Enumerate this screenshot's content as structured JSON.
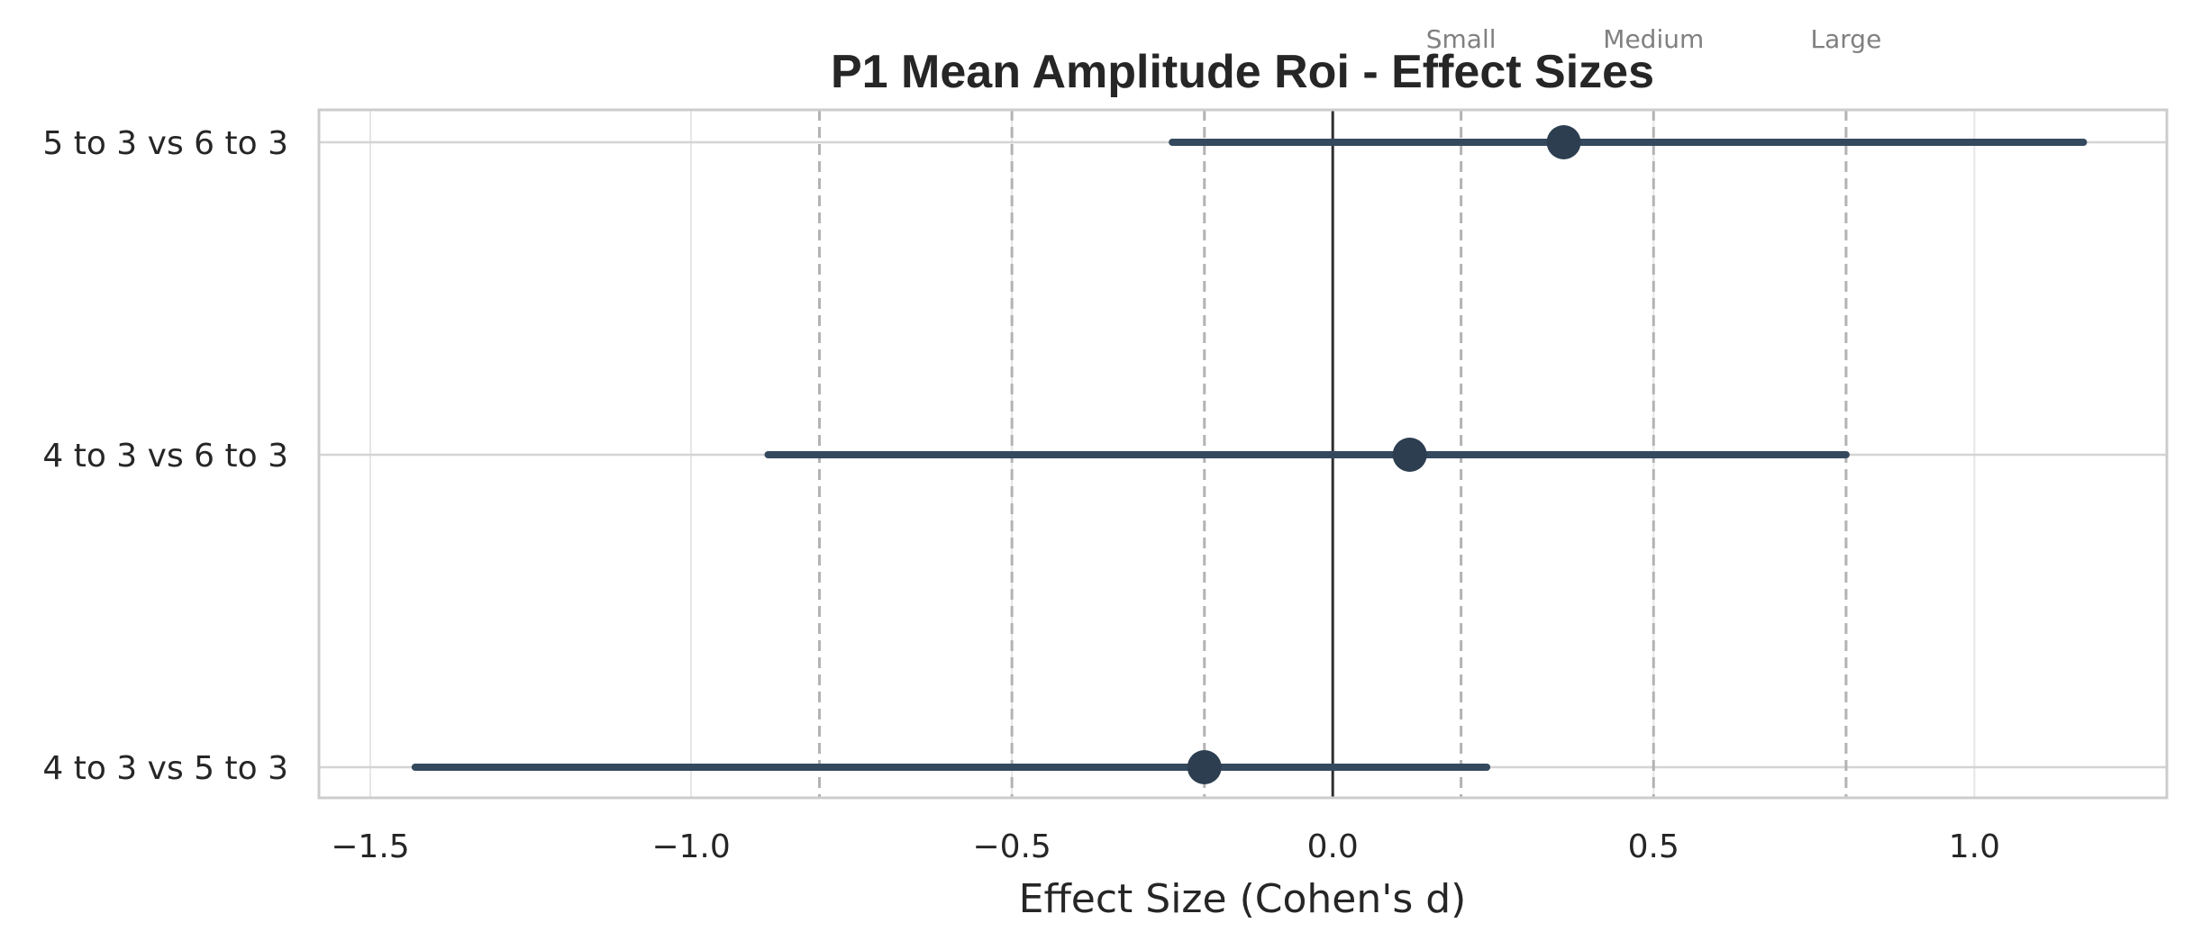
{
  "chart_data": {
    "type": "forest",
    "title": "P1 Mean Amplitude Roi - Effect Sizes",
    "xlabel": "Effect Size (Cohen's d)",
    "ylabel": "",
    "xlim": [
      -1.58,
      1.3
    ],
    "xticks": [
      -1.5,
      -1.0,
      -0.5,
      0.0,
      0.5,
      1.0
    ],
    "xtick_labels": [
      "−1.5",
      "−1.0",
      "−0.5",
      "0.0",
      "0.5",
      "1.0"
    ],
    "grid": true,
    "reference_line": 0.0,
    "thresholds": [
      {
        "label": "Small",
        "value": 0.2
      },
      {
        "label": "Medium",
        "value": 0.5
      },
      {
        "label": "Large",
        "value": 0.8
      }
    ],
    "comparisons": [
      {
        "label": "5 to 3 vs 6 to 3",
        "d": 0.36,
        "ci_low": -0.25,
        "ci_high": 1.17
      },
      {
        "label": "4 to 3 vs 6 to 3",
        "d": 0.12,
        "ci_low": -0.88,
        "ci_high": 0.8
      },
      {
        "label": "4 to 3 vs 5 to 3",
        "d": -0.2,
        "ci_low": -1.43,
        "ci_high": 0.24
      }
    ],
    "colors": {
      "point": "#2c3e50",
      "ci": "#34495e",
      "zero_line": "#2f2f2f",
      "threshold_line": "#b3b3b3",
      "grid": "#e6e6e6",
      "frame": "#cccccc"
    }
  }
}
